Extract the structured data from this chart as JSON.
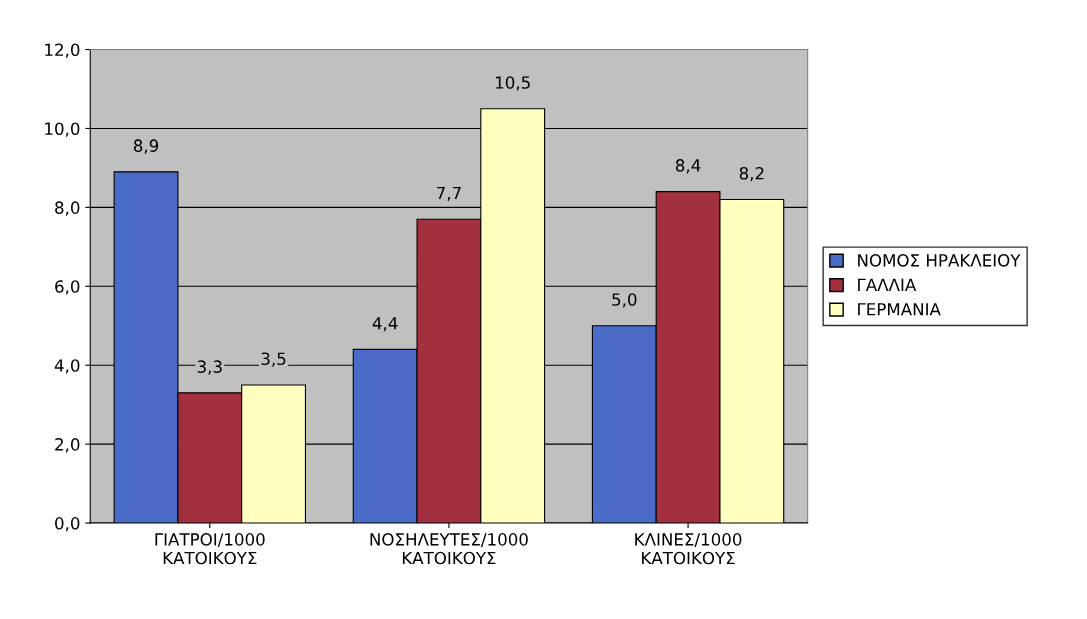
{
  "chart_data": {
    "type": "bar",
    "categories": [
      "ΓΙΑΤΡΟΙ/1000\nΚΑΤΟΙΚΟΥΣ",
      "ΝΟΣΗΛΕΥΤΕΣ/1000\nΚΑΤΟΙΚΟΥΣ",
      "ΚΛΙΝΕΣ/1000\nΚΑΤΟΙΚΟΥΣ"
    ],
    "series": [
      {
        "name": "ΝΟΜΟΣ ΗΡΑΚΛΕΙΟΥ",
        "color": "#4a6cc8",
        "values": [
          8.9,
          4.4,
          5.0
        ],
        "value_labels": [
          "8,9",
          "4,4",
          "5,0"
        ]
      },
      {
        "name": "ΓΑΛΛΙΑ",
        "color": "#a3303e",
        "values": [
          3.3,
          7.7,
          8.4
        ],
        "value_labels": [
          "3,3",
          "7,7",
          "8,4"
        ]
      },
      {
        "name": "ΓΕΡΜΑΝΙΑ",
        "color": "#ffffc0",
        "values": [
          3.5,
          10.5,
          8.2
        ],
        "value_labels": [
          "3,5",
          "10,5",
          "8,2"
        ]
      }
    ],
    "ylim": [
      0,
      12
    ],
    "yticks": [
      {
        "value": 0,
        "label": "0,0"
      },
      {
        "value": 2,
        "label": "2,0"
      },
      {
        "value": 4,
        "label": "4,0"
      },
      {
        "value": 6,
        "label": "6,0"
      },
      {
        "value": 8,
        "label": "8,0"
      },
      {
        "value": 10,
        "label": "10,0"
      },
      {
        "value": 12,
        "label": "12,0"
      }
    ],
    "grid": "y",
    "legend": "right"
  }
}
